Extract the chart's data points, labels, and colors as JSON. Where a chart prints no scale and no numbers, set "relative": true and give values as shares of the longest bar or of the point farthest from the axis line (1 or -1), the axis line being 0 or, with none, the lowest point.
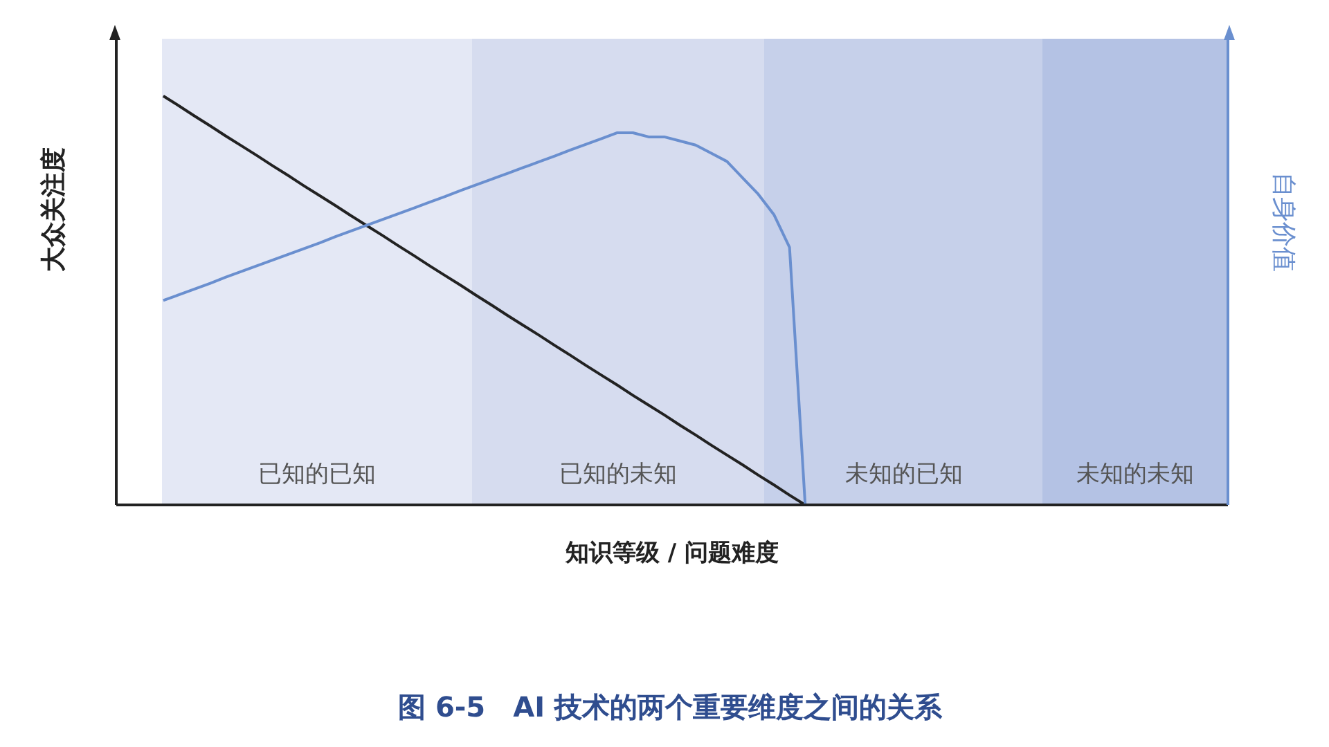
{
  "chart_data": {
    "type": "line",
    "relative": true,
    "title": "图 6-5　AI 技术的两个重要维度之间的关系",
    "xlabel": "知识等级 / 问题难度",
    "ylabel": "大众关注度",
    "y2label": "自身价值",
    "categories": [
      null,
      null,
      null,
      null,
      null,
      null,
      null,
      null,
      null,
      null,
      null,
      null,
      null,
      null,
      null,
      null,
      null,
      null,
      null,
      null,
      null,
      null,
      null,
      null,
      null,
      null,
      null,
      null,
      null,
      null,
      null,
      null,
      null,
      null,
      null,
      null,
      null,
      null,
      null,
      null,
      null,
      null,
      null,
      null,
      null,
      null,
      null,
      null,
      null,
      null,
      null,
      null,
      null,
      null,
      null,
      null,
      null,
      null,
      null,
      null,
      null,
      null,
      null,
      null,
      null,
      null,
      null,
      null,
      null,
      null,
      null,
      null
    ],
    "grid": false,
    "legend": false,
    "marker": "none",
    "line_style": "solid",
    "annotations": [
      "已知的已知",
      "已知的未知",
      "未知的已知",
      "未知的未知"
    ],
    "series": [
      {
        "color": "#222222",
        "values": [
          null,
          null,
          null,
          1,
          0.976,
          0.951,
          0.927,
          0.902,
          0.878,
          0.854,
          0.829,
          0.805,
          0.78,
          0.756,
          0.732,
          0.707,
          0.683,
          0.659,
          0.634,
          0.61,
          0.585,
          0.561,
          0.537,
          0.512,
          0.488,
          0.463,
          0.439,
          0.415,
          0.39,
          0.366,
          0.341,
          0.317,
          0.293,
          0.268,
          0.244,
          0.22,
          0.195,
          0.171,
          0.146,
          0.122,
          0.098,
          0.073,
          0.049,
          0.024,
          0,
          null,
          null,
          null,
          null,
          null,
          null,
          null,
          null,
          null,
          null,
          null,
          null,
          null,
          null,
          null,
          null,
          null,
          null,
          null,
          null,
          null,
          null,
          null,
          null,
          null,
          null,
          null
        ]
      },
      {
        "color": "#6a8fcf",
        "values": [
          null,
          null,
          null,
          0.5,
          0.514,
          0.528,
          0.542,
          0.557,
          0.571,
          0.585,
          0.599,
          0.613,
          0.627,
          0.641,
          0.656,
          0.67,
          0.684,
          0.698,
          0.712,
          0.726,
          0.74,
          0.754,
          0.769,
          0.783,
          0.797,
          0.811,
          0.825,
          0.839,
          0.853,
          0.868,
          0.882,
          0.896,
          0.91,
          0.91,
          0.9,
          0.9,
          0.89,
          0.88,
          0.86,
          0.84,
          0.8,
          0.76,
          0.71,
          0.63,
          0,
          null,
          null,
          null,
          null,
          null,
          null,
          null,
          null,
          null,
          null,
          null,
          null,
          null,
          null,
          null,
          null,
          null,
          null,
          null,
          null,
          null,
          null,
          null,
          null,
          null,
          null,
          null
        ]
      }
    ]
  }
}
